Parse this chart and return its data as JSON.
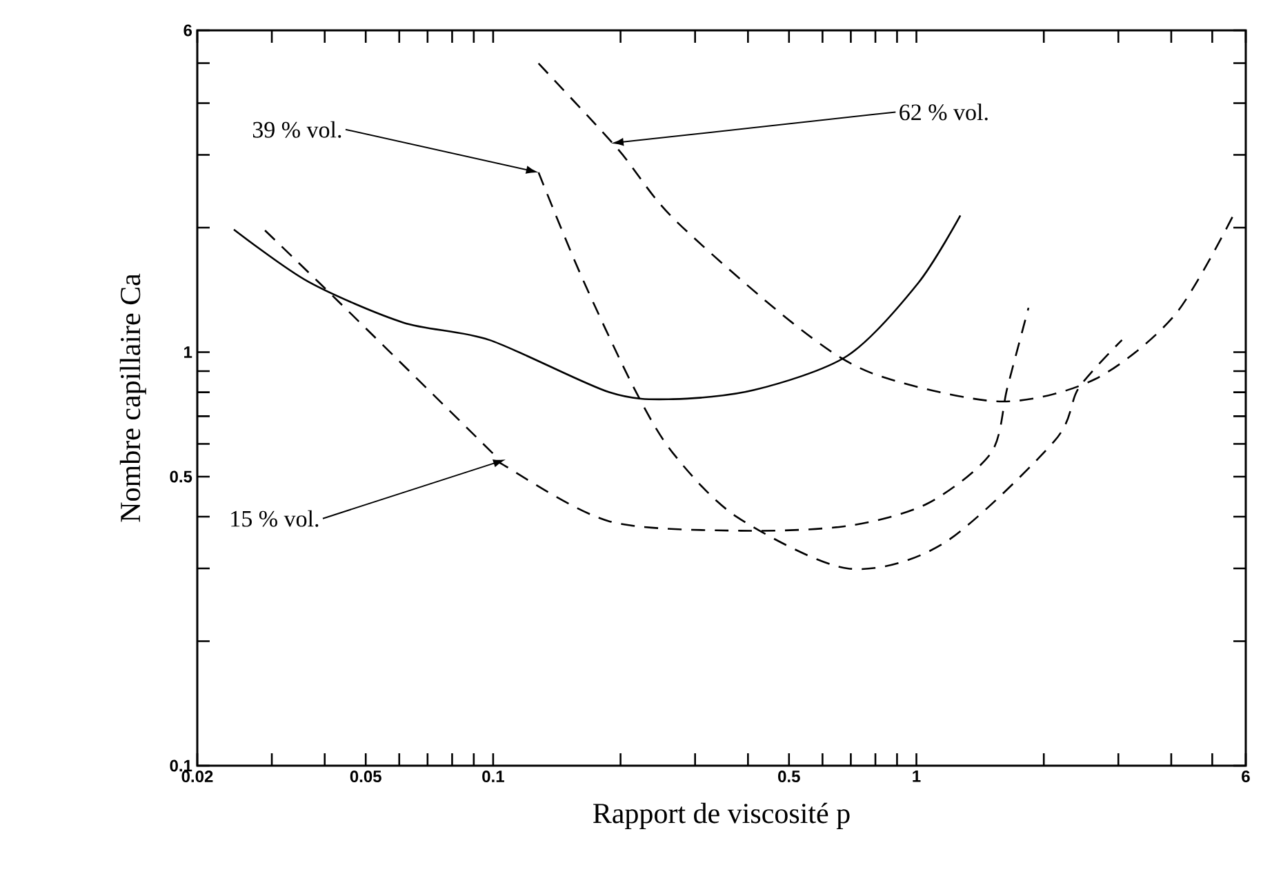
{
  "chart_data": {
    "type": "line",
    "xlabel": "Rapport de viscosité p",
    "ylabel": "Nombre capillaire Ca",
    "log": "xy",
    "xlim": [
      0.02,
      6
    ],
    "ylim": [
      0.1,
      6
    ],
    "xticks": [
      0.02,
      {
        "value": 0.03,
        "label": null
      },
      {
        "value": 0.04,
        "label": null
      },
      0.05,
      {
        "value": 0.06,
        "label": null
      },
      {
        "value": 0.07,
        "label": null
      },
      {
        "value": 0.08,
        "label": null
      },
      {
        "value": 0.09,
        "label": null
      },
      0.1,
      {
        "value": 0.2,
        "label": null
      },
      {
        "value": 0.3,
        "label": null
      },
      {
        "value": 0.4,
        "label": null
      },
      0.5,
      {
        "value": 0.6,
        "label": null
      },
      {
        "value": 0.7,
        "label": null
      },
      {
        "value": 0.8,
        "label": null
      },
      {
        "value": 0.9,
        "label": null
      },
      1,
      {
        "value": 2,
        "label": null
      },
      {
        "value": 3,
        "label": null
      },
      {
        "value": 4,
        "label": null
      },
      {
        "value": 5,
        "label": null
      },
      6
    ],
    "yticks": [
      0.1,
      {
        "value": 0.2,
        "label": null
      },
      {
        "value": 0.3,
        "label": null
      },
      {
        "value": 0.4,
        "label": null
      },
      0.5,
      {
        "value": 0.6,
        "label": null
      },
      {
        "value": 0.7,
        "label": null
      },
      {
        "value": 0.8,
        "label": null
      },
      {
        "value": 0.9,
        "label": null
      },
      1,
      {
        "value": 2,
        "label": null
      },
      {
        "value": 3,
        "label": null
      },
      {
        "value": 4,
        "label": null
      },
      {
        "value": 5,
        "label": null
      },
      6
    ],
    "series": [
      {
        "color": "#000000",
        "line_style": "solid",
        "x": [
          0.0244,
          0.0366,
          0.0612,
          0.098,
          0.188,
          0.266,
          0.414,
          0.687,
          1.01,
          1.27
        ],
        "values": [
          1.98,
          1.48,
          1.18,
          1.07,
          0.8,
          0.77,
          0.81,
          0.98,
          1.47,
          2.14
        ]
      },
      {
        "color": "#000000",
        "line_style": "dashed",
        "x": [
          0.0289,
          0.0433,
          0.098,
          0.107,
          0.188,
          0.384,
          0.687,
          1.06,
          1.5,
          1.64,
          1.84
        ],
        "values": [
          1.97,
          1.32,
          0.58,
          0.53,
          0.39,
          0.37,
          0.38,
          0.43,
          0.57,
          0.82,
          1.28
        ]
      },
      {
        "color": "#000000",
        "line_style": "dashed",
        "x": [
          0.128,
          0.161,
          0.215,
          0.266,
          0.376,
          0.687,
          1.16,
          2.12,
          2.42,
          3.06
        ],
        "values": [
          2.72,
          1.54,
          0.82,
          0.57,
          0.4,
          0.3,
          0.345,
          0.61,
          0.82,
          1.07
        ]
      },
      {
        "color": "#000000",
        "line_style": "dashed",
        "x": [
          0.128,
          0.197,
          0.266,
          0.508,
          0.784,
          1.57,
          2.64,
          4.08,
          5.63
        ],
        "values": [
          4.99,
          3.1,
          2.11,
          1.18,
          0.89,
          0.76,
          0.86,
          1.23,
          2.16
        ]
      }
    ],
    "annotations": [
      {
        "text": "39 % vol.",
        "x": 0.128,
        "y": 2.72
      },
      {
        "text": "62 % vol.",
        "x": 0.19,
        "y": 3.2
      },
      {
        "text": "15 % vol.",
        "x": 0.107,
        "y": 0.55
      }
    ]
  }
}
